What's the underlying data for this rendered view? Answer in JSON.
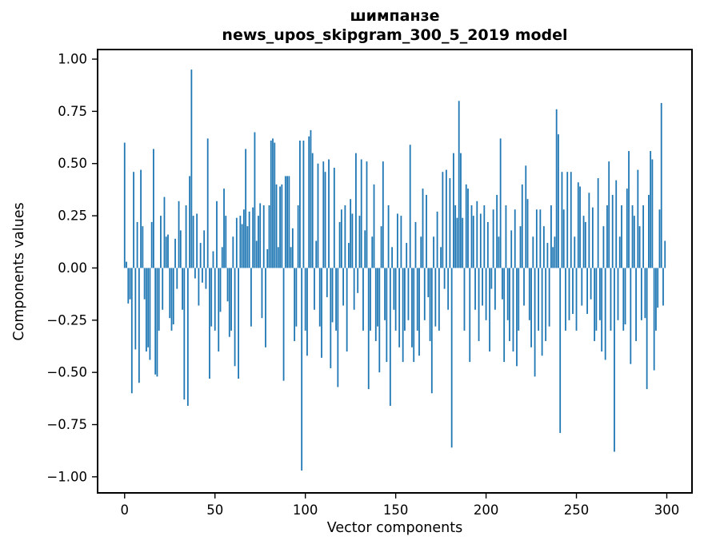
{
  "figure": {
    "title_line1": "шимпанзе",
    "title_line2": "news_upos_skipgram_300_5_2019 model"
  },
  "chart_data": {
    "type": "bar",
    "title": "шимпанзе",
    "subtitle": "news_upos_skipgram_300_5_2019 model",
    "xlabel": "Vector components",
    "ylabel": "Components values",
    "bar_color": "#1f77b4",
    "axis_color": "#000000",
    "grid": false,
    "legend_position": "none",
    "n_components": 300,
    "x_ticks": [
      0,
      50,
      100,
      150,
      200,
      250,
      300
    ],
    "x_tick_labels": [
      "0",
      "50",
      "100",
      "150",
      "200",
      "250",
      "300"
    ],
    "y_ticks": [
      1.0,
      0.75,
      0.5,
      0.25,
      0.0,
      -0.25,
      -0.5,
      -0.75,
      -1.0
    ],
    "y_tick_labels": [
      "1.00",
      "0.75",
      "0.50",
      "0.25",
      "0.00",
      "−0.25",
      "−0.50",
      "−0.75",
      "−1.00"
    ],
    "xlim": [
      -14.95,
      313.95
    ],
    "ylim": [
      -1.077,
      1.046
    ],
    "values": [
      0.6,
      0.03,
      -0.17,
      -0.15,
      -0.6,
      0.46,
      -0.39,
      0.22,
      -0.55,
      0.47,
      0.2,
      -0.15,
      -0.4,
      -0.38,
      -0.44,
      0.22,
      0.57,
      -0.51,
      -0.52,
      -0.3,
      0.25,
      -0.2,
      0.34,
      0.15,
      0.16,
      -0.24,
      -0.3,
      -0.27,
      0.14,
      -0.1,
      0.32,
      0.18,
      -0.2,
      -0.63,
      0.3,
      -0.66,
      0.44,
      0.95,
      0.25,
      -0.05,
      0.26,
      -0.18,
      0.12,
      -0.07,
      0.18,
      -0.1,
      0.62,
      -0.53,
      -0.28,
      0.08,
      -0.3,
      0.32,
      -0.4,
      -0.21,
      0.1,
      0.38,
      0.25,
      -0.16,
      -0.33,
      -0.3,
      0.15,
      -0.47,
      0.24,
      -0.53,
      0.25,
      0.21,
      0.28,
      0.57,
      0.2,
      0.27,
      -0.28,
      0.29,
      0.65,
      0.13,
      0.25,
      0.31,
      -0.24,
      0.3,
      -0.38,
      0.09,
      0.3,
      0.61,
      0.62,
      0.6,
      0.4,
      0.1,
      0.39,
      0.4,
      -0.54,
      0.44,
      0.44,
      0.44,
      0.1,
      0.19,
      -0.35,
      -0.28,
      0.3,
      0.61,
      -0.97,
      0.61,
      -0.3,
      -0.42,
      0.63,
      0.66,
      0.55,
      -0.2,
      0.13,
      0.5,
      -0.28,
      -0.43,
      0.51,
      0.46,
      -0.14,
      0.52,
      -0.48,
      -0.26,
      0.48,
      -0.3,
      -0.57,
      0.22,
      0.28,
      -0.18,
      0.3,
      -0.4,
      0.12,
      0.33,
      0.26,
      -0.2,
      0.55,
      -0.12,
      0.25,
      0.52,
      -0.3,
      0.18,
      0.51,
      -0.58,
      -0.3,
      0.15,
      0.4,
      -0.35,
      -0.28,
      -0.5,
      0.2,
      0.51,
      -0.25,
      -0.45,
      0.3,
      -0.66,
      0.1,
      -0.2,
      -0.3,
      0.26,
      -0.38,
      0.25,
      -0.45,
      -0.3,
      0.12,
      -0.25,
      0.59,
      -0.38,
      -0.45,
      0.22,
      -0.3,
      -0.42,
      0.15,
      0.38,
      -0.25,
      0.35,
      -0.14,
      -0.35,
      -0.6,
      0.15,
      -0.28,
      0.27,
      -0.3,
      0.1,
      0.46,
      -0.1,
      0.47,
      -0.2,
      0.43,
      -0.86,
      0.55,
      0.3,
      0.24,
      0.8,
      0.55,
      0.24,
      -0.3,
      0.4,
      0.38,
      -0.45,
      0.3,
      0.25,
      -0.2,
      0.32,
      -0.35,
      0.26,
      -0.18,
      0.3,
      -0.25,
      0.22,
      -0.4,
      -0.1,
      0.28,
      -0.2,
      0.35,
      0.15,
      0.62,
      -0.15,
      -0.45,
      0.3,
      -0.25,
      -0.35,
      0.18,
      -0.4,
      0.28,
      -0.47,
      -0.3,
      0.2,
      0.4,
      -0.18,
      0.49,
      0.33,
      -0.25,
      -0.38,
      0.15,
      -0.52,
      0.28,
      -0.3,
      0.28,
      -0.42,
      0.2,
      -0.35,
      0.12,
      -0.28,
      0.3,
      0.1,
      0.15,
      0.76,
      0.64,
      -0.79,
      0.46,
      0.28,
      -0.3,
      0.46,
      -0.25,
      0.46,
      -0.22,
      0.15,
      -0.3,
      0.41,
      0.39,
      -0.18,
      0.25,
      0.22,
      -0.22,
      0.36,
      -0.15,
      0.29,
      -0.35,
      -0.3,
      0.43,
      -0.25,
      -0.4,
      0.2,
      -0.44,
      0.3,
      0.51,
      -0.3,
      0.35,
      -0.88,
      0.42,
      -0.25,
      0.15,
      0.3,
      -0.3,
      -0.27,
      0.38,
      0.56,
      -0.46,
      0.3,
      0.25,
      -0.35,
      0.47,
      0.2,
      -0.25,
      0.3,
      -0.24,
      -0.58,
      0.35,
      0.56,
      0.52,
      -0.49,
      -0.3,
      -0.19,
      0.28,
      0.79,
      -0.18,
      0.13
    ]
  }
}
